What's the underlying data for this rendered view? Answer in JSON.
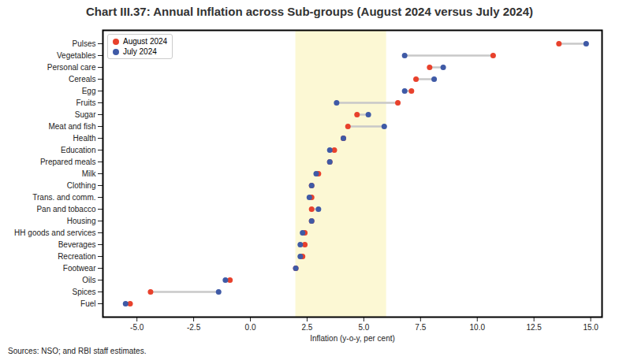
{
  "chart_data": {
    "type": "dumbbell",
    "orientation": "horizontal",
    "title": "Chart III.37: Annual Inflation across Sub-groups (August 2024 versus July 2024)",
    "source": "Sources: NSO; and RBI staff estimates.",
    "xlabel": "Inflation (y-o-y, per cent)",
    "categories": [
      "Pulses",
      "Vegetables",
      "Personal care",
      "Cereals",
      "Egg",
      "Fruits",
      "Sugar",
      "Meat and fish",
      "Health",
      "Education",
      "Prepared meals",
      "Milk",
      "Clothing",
      "Trans. and comm.",
      "Pan and tobacco",
      "Housing",
      "HH goods and services",
      "Beverages",
      "Recreation",
      "Footwear",
      "Oils",
      "Spices",
      "Fuel"
    ],
    "series": [
      {
        "name": "August 2024",
        "color": "#e8412c",
        "values": [
          13.6,
          10.7,
          7.9,
          7.3,
          7.1,
          6.5,
          4.7,
          4.3,
          4.1,
          3.7,
          3.5,
          3.0,
          2.7,
          2.7,
          2.7,
          2.7,
          2.4,
          2.4,
          2.3,
          2.0,
          -0.9,
          -4.4,
          -5.3
        ]
      },
      {
        "name": "July 2024",
        "color": "#3f5aa6",
        "values": [
          14.8,
          6.8,
          8.5,
          8.1,
          6.8,
          3.8,
          5.2,
          5.9,
          4.1,
          3.5,
          3.5,
          2.9,
          2.7,
          2.6,
          3.0,
          2.7,
          2.3,
          2.2,
          2.2,
          2.0,
          -1.1,
          -1.4,
          -5.5
        ]
      }
    ],
    "shaded_band": [
      2,
      6
    ],
    "xlim": [
      -6.5,
      15.5
    ],
    "xticks": [
      {
        "value": -5,
        "label": "-5.0"
      },
      -2.5,
      {
        "value": 0,
        "label": "0.0"
      },
      2.5,
      {
        "value": 5,
        "label": "5.0"
      },
      7.5,
      {
        "value": 10,
        "label": "10.0"
      },
      12.5,
      {
        "value": 15,
        "label": "15.0"
      }
    ],
    "legend": "upper left",
    "grid": false
  }
}
